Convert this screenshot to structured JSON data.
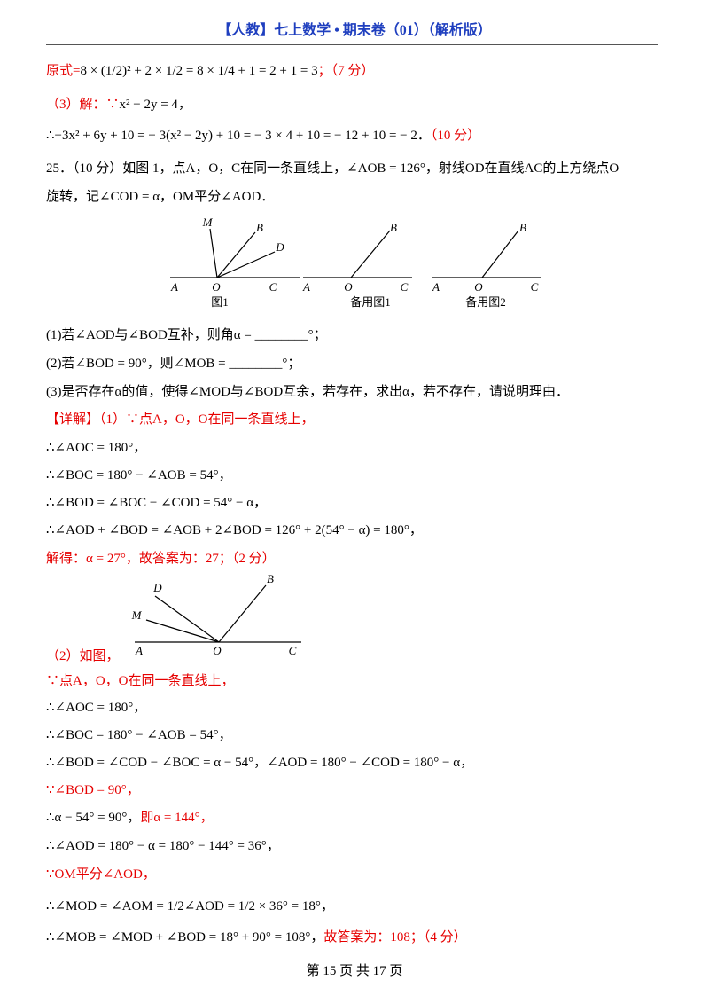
{
  "header": {
    "title": "【人教】七上数学 • 期末卷（01）（解析版）"
  },
  "lines": [
    [
      {
        "text": "原式=",
        "color": "#e60000"
      },
      {
        "text": "8 × (1/2)² + 2 × 1/2 = 8 × 1/4 + 1 = 2 + 1 = 3"
      },
      {
        "text": "；（7 分）",
        "color": "#e60000"
      }
    ],
    [
      {
        "text": "（3）解：∵",
        "color": "#e60000"
      },
      {
        "text": "x² − 2y = 4，"
      }
    ],
    [
      {
        "text": "∴−3x² + 6y + 10 = − 3(x² − 2y) + 10 = − 3 × 4 + 10 = − 12 + 10 = − 2．"
      },
      {
        "text": "（10 分）",
        "color": "#e60000"
      }
    ],
    [
      {
        "text": "25．（10 分）如图 1，点A，O，C在同一条直线上，∠AOB = 126°，射线OD在直线AC的上方绕点O"
      }
    ],
    [
      {
        "text": "旋转，记∠COD = α，OM平分∠AOD．"
      }
    ],
    [
      {
        "text": "(1)若∠AOD与∠BOD互补，则角α = ________°；"
      }
    ],
    [
      {
        "text": "(2)若∠BOD = 90°，则∠MOB = ________°；"
      }
    ],
    [
      {
        "text": "(3)是否存在α的值，使得∠MOD与∠BOD互余，若存在，求出α，若不存在，请说明理由．"
      }
    ],
    [
      {
        "text": "【详解】（1）∵点A，O，O在同一条直线上，",
        "color": "#e60000"
      }
    ],
    [
      {
        "text": "∴∠AOC = 180°，"
      }
    ],
    [
      {
        "text": "∴∠BOC = 180° − ∠AOB = 54°，"
      }
    ],
    [
      {
        "text": "∴∠BOD = ∠BOC − ∠COD = 54° − α，"
      }
    ],
    [
      {
        "text": "∴∠AOD + ∠BOD = ∠AOB + 2∠BOD = 126° + 2(54° − α) = 180°，"
      }
    ],
    [
      {
        "text": "解得：α = 27°，故答案为：27；（2 分）",
        "color": "#e60000"
      }
    ],
    [
      {
        "text": "（2）如图，",
        "color": "#e60000"
      }
    ],
    [
      {
        "text": "∵点A，O，O在同一条直线上，",
        "color": "#e60000"
      }
    ],
    [
      {
        "text": "∴∠AOC = 180°，"
      }
    ],
    [
      {
        "text": "∴∠BOC = 180° − ∠AOB = 54°，"
      }
    ],
    [
      {
        "text": "∴∠BOD = ∠COD − ∠BOC = α − 54°，∠AOD = 180° − ∠COD = 180° − α，"
      }
    ],
    [
      {
        "text": "∵∠BOD = 90°，",
        "color": "#e60000"
      }
    ],
    [
      {
        "text": "∴α − 54° = 90°，"
      },
      {
        "text": "即α = 144°，",
        "color": "#e60000"
      }
    ],
    [
      {
        "text": "∴∠AOD = 180° − α = 180° − 144° = 36°，"
      }
    ],
    [
      {
        "text": "∵OM平分∠AOD，",
        "color": "#e60000"
      }
    ],
    [
      {
        "text": "∴∠MOD = ∠AOM = 1/2∠AOD = 1/2 × 36° = 18°，"
      }
    ],
    [
      {
        "text": "∴∠MOB = ∠MOD + ∠BOD = 18° + 90° = 108°，"
      },
      {
        "text": "故答案为：108；（4 分）",
        "color": "#e60000"
      }
    ]
  ],
  "figures": [
    {
      "caption": "图1",
      "labels": [
        "M",
        "B",
        "D",
        "A",
        "O",
        "C"
      ]
    },
    {
      "caption": "备用图1",
      "labels": [
        "B",
        "A",
        "O",
        "C"
      ]
    },
    {
      "caption": "备用图2",
      "labels": [
        "B",
        "A",
        "O",
        "C"
      ]
    },
    {
      "labels": [
        "D",
        "M",
        "B",
        "A",
        "O",
        "C"
      ]
    }
  ],
  "footer": {
    "page": "第 15 页 共 17 页"
  }
}
